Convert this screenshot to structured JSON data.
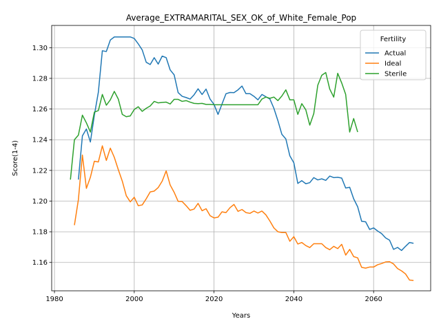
{
  "chart_data": {
    "type": "line",
    "title": "Average_EXTRAMARITAL_SEX_OK_of_White_Female_Pop",
    "xlabel": "Years",
    "ylabel": "Score(1-4)",
    "xlim": [
      1979.3,
      2074.3
    ],
    "ylim": [
      1.1415,
      1.3145
    ],
    "xticks": [
      1980,
      2000,
      2020,
      2040,
      2060
    ],
    "yticks": [
      1.16,
      1.18,
      1.2,
      1.22,
      1.24,
      1.26,
      1.28,
      1.3
    ],
    "grid": true,
    "legend": {
      "title": "Fertility",
      "placement": "top-right"
    },
    "series": [
      {
        "name": "Actual",
        "color": "#1f77b4",
        "x": [
          1986,
          1987,
          1988,
          1989,
          1990,
          1991,
          1992,
          1993,
          1994,
          1995,
          1996,
          1997,
          1998,
          1999,
          2000,
          2001,
          2002,
          2003,
          2004,
          2005,
          2006,
          2007,
          2008,
          2009,
          2010,
          2011,
          2012,
          2013,
          2014,
          2015,
          2016,
          2017,
          2018,
          2019,
          2020,
          2021,
          2022,
          2023,
          2024,
          2025,
          2026,
          2027,
          2028,
          2029,
          2030,
          2031,
          2032,
          2033,
          2034,
          2035,
          2036,
          2037,
          2038,
          2039,
          2040,
          2041,
          2042,
          2043,
          2044,
          2045,
          2046,
          2047,
          2048,
          2049,
          2050,
          2051,
          2052,
          2053,
          2054,
          2055,
          2056,
          2057,
          2058,
          2059,
          2060,
          2061,
          2062,
          2063,
          2064,
          2065,
          2066,
          2067,
          2068,
          2069,
          2070
        ],
        "values": [
          1.214,
          1.2425,
          1.247,
          1.2385,
          1.256,
          1.271,
          1.298,
          1.2975,
          1.305,
          1.307,
          1.307,
          1.307,
          1.307,
          1.307,
          1.306,
          1.3025,
          1.2985,
          1.2905,
          1.289,
          1.2935,
          1.2893,
          1.2945,
          1.2935,
          1.2855,
          1.2823,
          1.2707,
          1.2683,
          1.2675,
          1.2665,
          1.2693,
          1.2732,
          1.2695,
          1.273,
          1.2665,
          1.263,
          1.2565,
          1.2633,
          1.27,
          1.2708,
          1.2707,
          1.2725,
          1.275,
          1.27,
          1.27,
          1.2683,
          1.266,
          1.2695,
          1.268,
          1.2665,
          1.2605,
          1.2525,
          1.2435,
          1.2405,
          1.2295,
          1.225,
          1.2115,
          1.2133,
          1.2113,
          1.212,
          1.2153,
          1.2138,
          1.2145,
          1.2135,
          1.2163,
          1.2153,
          1.2155,
          1.215,
          1.2085,
          1.209,
          1.2015,
          1.1963,
          1.1868,
          1.1865,
          1.1815,
          1.1825,
          1.1805,
          1.1788,
          1.176,
          1.1745,
          1.1685,
          1.1698,
          1.1678,
          1.1705,
          1.173,
          1.1725
        ]
      },
      {
        "name": "Ideal",
        "color": "#ff7f0e",
        "x": [
          1985,
          1986,
          1987,
          1988,
          1989,
          1990,
          1991,
          1992,
          1993,
          1994,
          1995,
          1996,
          1997,
          1998,
          1999,
          2000,
          2001,
          2002,
          2003,
          2004,
          2005,
          2006,
          2007,
          2008,
          2009,
          2010,
          2011,
          2012,
          2013,
          2014,
          2015,
          2016,
          2017,
          2018,
          2019,
          2020,
          2021,
          2022,
          2023,
          2024,
          2025,
          2026,
          2027,
          2028,
          2029,
          2030,
          2031,
          2032,
          2033,
          2034,
          2035,
          2036,
          2037,
          2038,
          2039,
          2040,
          2041,
          2042,
          2043,
          2044,
          2045,
          2046,
          2047,
          2048,
          2049,
          2050,
          2051,
          2052,
          2053,
          2054,
          2055,
          2056,
          2057,
          2058,
          2059,
          2060,
          2061,
          2062,
          2063,
          2064,
          2065,
          2066,
          2067,
          2068,
          2069,
          2070
        ],
        "values": [
          1.1843,
          1.201,
          1.23,
          1.2083,
          1.2155,
          1.226,
          1.2255,
          1.236,
          1.2265,
          1.2345,
          1.2285,
          1.2205,
          1.213,
          1.2035,
          1.1995,
          1.2025,
          1.197,
          1.1975,
          1.2015,
          1.206,
          1.2065,
          1.2088,
          1.213,
          1.2197,
          1.2105,
          1.2057,
          1.1998,
          1.1997,
          1.197,
          1.194,
          1.1948,
          1.1985,
          1.1937,
          1.195,
          1.1905,
          1.189,
          1.1895,
          1.193,
          1.1925,
          1.1957,
          1.1978,
          1.1933,
          1.1945,
          1.1925,
          1.192,
          1.1935,
          1.1922,
          1.1935,
          1.191,
          1.187,
          1.1825,
          1.18,
          1.1795,
          1.1795,
          1.1738,
          1.1768,
          1.172,
          1.173,
          1.171,
          1.1697,
          1.1722,
          1.1722,
          1.1722,
          1.1697,
          1.1683,
          1.1705,
          1.169,
          1.1718,
          1.1648,
          1.1685,
          1.1638,
          1.163,
          1.1568,
          1.1563,
          1.157,
          1.157,
          1.1585,
          1.1593,
          1.1603,
          1.1605,
          1.159,
          1.156,
          1.1545,
          1.1525,
          1.1485,
          1.1483
        ]
      },
      {
        "name": "Sterile",
        "color": "#2ca02c",
        "x": [
          1984,
          1985,
          1986,
          1987,
          1988,
          1989,
          1990,
          1991,
          1992,
          1993,
          1994,
          1995,
          1996,
          1997,
          1998,
          1999,
          2000,
          2001,
          2002,
          2003,
          2004,
          2005,
          2006,
          2007,
          2008,
          2009,
          2010,
          2011,
          2012,
          2013,
          2014,
          2015,
          2016,
          2017,
          2018,
          2019,
          2020,
          2021,
          2022,
          2023,
          2024,
          2025,
          2026,
          2027,
          2028,
          2029,
          2030,
          2031,
          2032,
          2033,
          2034,
          2035,
          2036,
          2037,
          2038,
          2039,
          2040,
          2041,
          2042,
          2043,
          2044,
          2045,
          2046,
          2047,
          2048,
          2049,
          2050,
          2051,
          2052,
          2053,
          2054,
          2055,
          2056
        ],
        "values": [
          1.214,
          1.24,
          1.243,
          1.256,
          1.251,
          1.245,
          1.258,
          1.259,
          1.2695,
          1.2625,
          1.266,
          1.2715,
          1.2665,
          1.2565,
          1.255,
          1.2555,
          1.2597,
          1.2615,
          1.2585,
          1.2605,
          1.262,
          1.265,
          1.264,
          1.2643,
          1.2645,
          1.2633,
          1.2663,
          1.2663,
          1.265,
          1.2655,
          1.2645,
          1.2637,
          1.2635,
          1.2637,
          1.263,
          1.263,
          1.2628,
          1.2628,
          1.2628,
          1.2628,
          1.2628,
          1.2628,
          1.2628,
          1.2628,
          1.2628,
          1.2628,
          1.2628,
          1.2628,
          1.2665,
          1.2678,
          1.267,
          1.2678,
          1.2655,
          1.2685,
          1.2725,
          1.266,
          1.266,
          1.2565,
          1.2635,
          1.2595,
          1.2495,
          1.257,
          1.2755,
          1.282,
          1.2838,
          1.273,
          1.2678,
          1.2833,
          1.277,
          1.2695,
          1.245,
          1.2538,
          1.245
        ]
      }
    ]
  }
}
